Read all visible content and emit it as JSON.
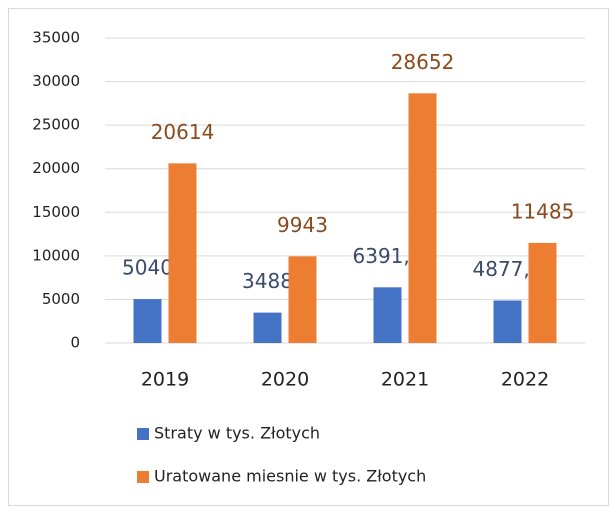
{
  "chart_data": {
    "type": "bar",
    "categories": [
      "2019",
      "2020",
      "2021",
      "2022"
    ],
    "series": [
      {
        "name": "Straty w tys. Złotych",
        "color": "#4472c4",
        "label_color": "#3b4a6b",
        "values": [
          5040,
          3488,
          6391.4,
          4877.3
        ],
        "value_labels": [
          "5040",
          "3488",
          "6391,4",
          "4877,3"
        ]
      },
      {
        "name": "Uratowane miesnie w tys. Złotych",
        "color": "#ed7d31",
        "label_color": "#8b4a1e",
        "values": [
          20614,
          9943,
          28652,
          11485
        ]
      }
    ],
    "ylim": [
      0,
      35000
    ],
    "yticks": [
      0,
      5000,
      10000,
      15000,
      20000,
      25000,
      30000,
      35000
    ],
    "grid": true
  }
}
